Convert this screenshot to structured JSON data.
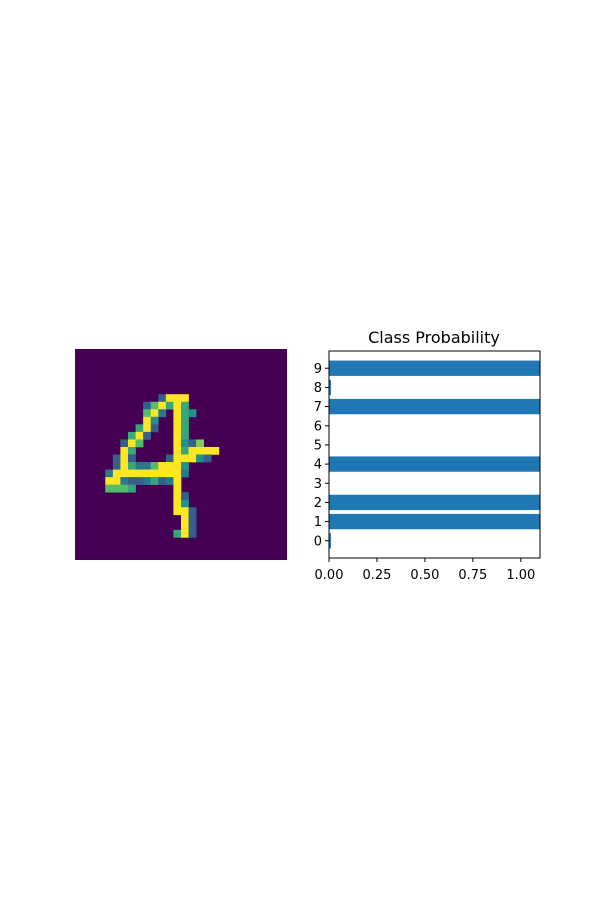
{
  "chart_data": [
    {
      "type": "heatmap",
      "title": "",
      "description_grid_size": 28,
      "colormap": "viridis",
      "axis": "off",
      "pixel_rows": [
        {
          "row": 6,
          "cells": [
            [
              7,
              0.3
            ],
            [
              8,
              1
            ],
            [
              9,
              1
            ],
            [
              10,
              1
            ]
          ]
        },
        {
          "row": 7,
          "cells": [
            [
              5,
              0.3
            ],
            [
              6,
              0.7
            ],
            [
              7,
              1
            ],
            [
              8,
              0.6
            ],
            [
              9,
              1
            ],
            [
              10,
              0.6
            ]
          ]
        },
        {
          "row": 8,
          "cells": [
            [
              5,
              0.7
            ],
            [
              6,
              1
            ],
            [
              7,
              0.4
            ],
            [
              9,
              1
            ],
            [
              10,
              0.6
            ],
            [
              11,
              0.5
            ]
          ]
        },
        {
          "row": 9,
          "cells": [
            [
              5,
              1
            ],
            [
              6,
              0.5
            ],
            [
              9,
              1
            ],
            [
              10,
              0.6
            ]
          ]
        },
        {
          "row": 10,
          "cells": [
            [
              4,
              0.6
            ],
            [
              5,
              1
            ],
            [
              6,
              0.3
            ],
            [
              9,
              1
            ],
            [
              10,
              0.6
            ]
          ]
        },
        {
          "row": 11,
          "cells": [
            [
              3,
              0.6
            ],
            [
              4,
              1
            ],
            [
              5,
              0.3
            ],
            [
              9,
              1
            ],
            [
              10,
              0.6
            ]
          ]
        },
        {
          "row": 12,
          "cells": [
            [
              2,
              0.3
            ],
            [
              3,
              1
            ],
            [
              4,
              0.7
            ],
            [
              9,
              1
            ],
            [
              10,
              0.5
            ],
            [
              11,
              0.3
            ],
            [
              12,
              0.8
            ]
          ]
        },
        {
          "row": 13,
          "cells": [
            [
              2,
              1
            ],
            [
              3,
              0.6
            ],
            [
              9,
              1
            ],
            [
              10,
              0.6
            ],
            [
              11,
              1
            ],
            [
              12,
              1
            ],
            [
              13,
              1
            ],
            [
              14,
              1
            ]
          ]
        },
        {
          "row": 14,
          "cells": [
            [
              1,
              0.3
            ],
            [
              2,
              1
            ],
            [
              3,
              0.3
            ],
            [
              8,
              0.3
            ],
            [
              9,
              1
            ],
            [
              10,
              1
            ],
            [
              11,
              1
            ],
            [
              12,
              0.5
            ],
            [
              13,
              0.3
            ]
          ]
        },
        {
          "row": 15,
          "cells": [
            [
              1,
              0.3
            ],
            [
              2,
              1
            ],
            [
              3,
              0.6
            ],
            [
              4,
              0.4
            ],
            [
              5,
              0.4
            ],
            [
              6,
              0.7
            ],
            [
              7,
              1
            ],
            [
              8,
              1
            ],
            [
              9,
              1
            ],
            [
              10,
              0.5
            ]
          ]
        },
        {
          "row": 16,
          "cells": [
            [
              0,
              0.4
            ],
            [
              1,
              1
            ],
            [
              2,
              1
            ],
            [
              3,
              1
            ],
            [
              4,
              1
            ],
            [
              5,
              1
            ],
            [
              6,
              1
            ],
            [
              7,
              1
            ],
            [
              8,
              1
            ],
            [
              9,
              1
            ],
            [
              10,
              0.4
            ]
          ]
        },
        {
          "row": 17,
          "cells": [
            [
              0,
              1
            ],
            [
              1,
              1
            ],
            [
              2,
              0.4
            ],
            [
              3,
              0.3
            ],
            [
              4,
              0.3
            ],
            [
              5,
              0.4
            ],
            [
              6,
              0.6
            ],
            [
              7,
              0.3
            ],
            [
              8,
              0.4
            ],
            [
              9,
              1
            ]
          ]
        },
        {
          "row": 18,
          "cells": [
            [
              0,
              0.7
            ],
            [
              1,
              0.7
            ],
            [
              2,
              0.7
            ],
            [
              3,
              0.6
            ],
            [
              9,
              1
            ]
          ]
        },
        {
          "row": 19,
          "cells": [
            [
              9,
              1
            ],
            [
              10,
              0.3
            ]
          ]
        },
        {
          "row": 20,
          "cells": [
            [
              9,
              1
            ],
            [
              10,
              0.5
            ]
          ]
        },
        {
          "row": 21,
          "cells": [
            [
              9,
              1
            ],
            [
              10,
              1
            ],
            [
              11,
              0.3
            ]
          ]
        },
        {
          "row": 22,
          "cells": [
            [
              10,
              1
            ],
            [
              11,
              0.3
            ]
          ]
        },
        {
          "row": 23,
          "cells": [
            [
              10,
              1
            ],
            [
              11,
              0.3
            ]
          ]
        },
        {
          "row": 24,
          "cells": [
            [
              9,
              0.6
            ],
            [
              10,
              1
            ],
            [
              11,
              0.3
            ]
          ]
        }
      ]
    },
    {
      "type": "bar",
      "orientation": "horizontal",
      "title": "Class Probability",
      "categories": [
        "0",
        "1",
        "2",
        "3",
        "4",
        "5",
        "6",
        "7",
        "8",
        "9"
      ],
      "values": [
        0.01,
        1.1,
        1.1,
        0.0,
        1.1,
        0.0,
        0.0,
        1.1,
        0.01,
        1.1
      ],
      "xlim": [
        0,
        1.1
      ],
      "xticks": [
        "0.00",
        "0.25",
        "0.50",
        "0.75",
        "1.00"
      ],
      "xtick_values": [
        0,
        0.25,
        0.5,
        0.75,
        1.0
      ],
      "bar_color": "#1f77b4",
      "grid": false
    }
  ]
}
